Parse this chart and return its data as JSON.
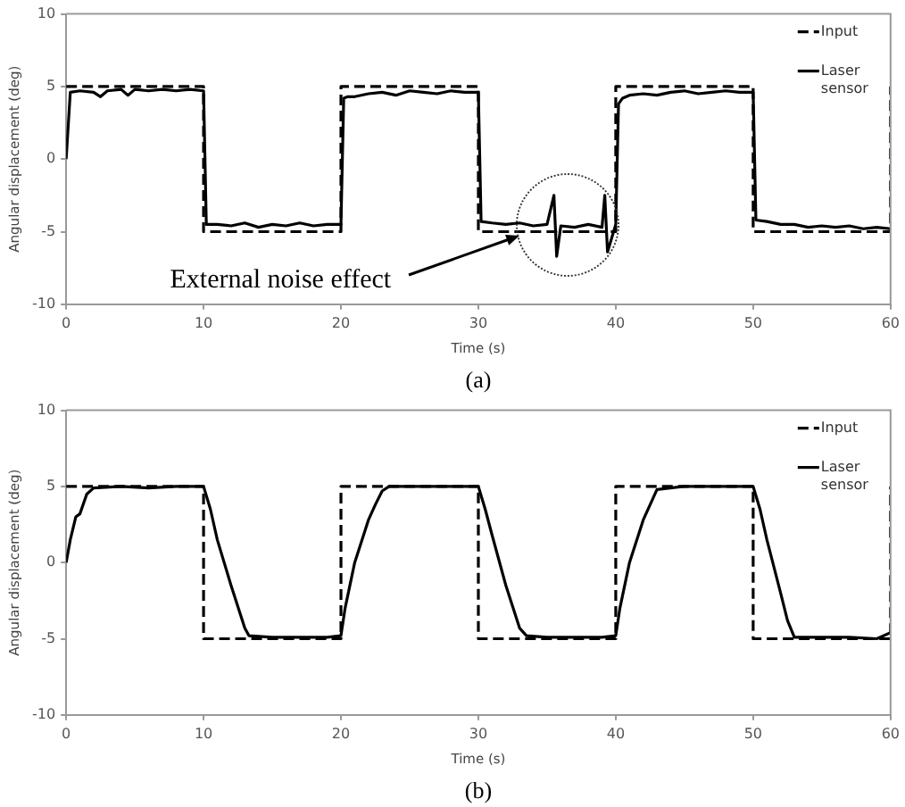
{
  "chart_data": [
    {
      "type": "line",
      "xlabel": "Time (s)",
      "ylabel": "Angular displacement (deg)",
      "xlim": [
        0,
        60
      ],
      "xticks": [
        0,
        10,
        20,
        30,
        40,
        50,
        60
      ],
      "ylim": [
        -10,
        10
      ],
      "yticks": [
        -10,
        -5,
        0,
        5,
        10
      ],
      "grid": false,
      "legend": "top right",
      "marker": "none",
      "annotations": [
        {
          "text": "External noise effect",
          "x": 33,
          "y": -5.3
        },
        "(a)"
      ],
      "series": [
        {
          "name": "Input",
          "color": "#000000",
          "line_style": "dashed",
          "x": [
            0,
            10,
            10,
            20,
            20,
            30,
            30,
            40,
            40,
            50,
            50,
            60,
            60
          ],
          "values": [
            5,
            5,
            -5,
            -5,
            5,
            5,
            -5,
            -5,
            5,
            5,
            -5,
            -5,
            5
          ]
        },
        {
          "name": "Laser sensor",
          "color": "#000000",
          "line_style": "solid",
          "x": [
            0,
            0.3,
            1,
            2,
            2.5,
            3,
            4,
            4.5,
            5,
            6,
            7,
            8,
            9,
            10,
            10.2,
            11,
            12,
            13,
            14,
            15,
            16,
            17,
            18,
            19,
            20,
            20.2,
            20.5,
            21,
            22,
            23,
            24,
            25,
            26,
            27,
            28,
            29,
            30,
            30.2,
            31,
            32,
            33,
            34,
            35,
            35.5,
            35.7,
            36,
            37,
            38,
            39,
            39.2,
            39.4,
            40,
            40.2,
            40.5,
            41,
            42,
            43,
            44,
            45,
            46,
            47,
            48,
            49,
            50,
            50.2,
            51,
            52,
            53,
            54,
            55,
            56,
            57,
            58,
            59,
            60
          ],
          "values": [
            0,
            4.6,
            4.7,
            4.6,
            4.3,
            4.7,
            4.8,
            4.4,
            4.8,
            4.7,
            4.8,
            4.7,
            4.8,
            4.7,
            -4.5,
            -4.5,
            -4.6,
            -4.4,
            -4.7,
            -4.5,
            -4.6,
            -4.4,
            -4.6,
            -4.5,
            -4.5,
            4.2,
            4.3,
            4.3,
            4.5,
            4.6,
            4.4,
            4.7,
            4.6,
            4.5,
            4.7,
            4.6,
            4.6,
            -4.3,
            -4.4,
            -4.5,
            -4.4,
            -4.6,
            -4.5,
            -2.5,
            -6.7,
            -4.6,
            -4.7,
            -4.5,
            -4.7,
            -2.5,
            -6.4,
            -4.5,
            3.8,
            4.2,
            4.4,
            4.5,
            4.4,
            4.6,
            4.7,
            4.5,
            4.6,
            4.7,
            4.6,
            4.6,
            -4.2,
            -4.3,
            -4.5,
            -4.5,
            -4.7,
            -4.6,
            -4.7,
            -4.6,
            -4.8,
            -4.7,
            -4.8
          ]
        }
      ]
    },
    {
      "type": "line",
      "xlabel": "Time (s)",
      "ylabel": "Angular displacement (deg)",
      "xlim": [
        0,
        60
      ],
      "xticks": [
        0,
        10,
        20,
        30,
        40,
        50,
        60
      ],
      "ylim": [
        -10,
        10
      ],
      "yticks": [
        -10,
        -5,
        0,
        5,
        10
      ],
      "grid": false,
      "legend": "top right",
      "marker": "none",
      "annotations": [
        "(b)"
      ],
      "series": [
        {
          "name": "Input",
          "color": "#000000",
          "line_style": "dashed",
          "x": [
            0,
            10,
            10,
            20,
            20,
            30,
            30,
            40,
            40,
            50,
            50,
            60,
            60
          ],
          "values": [
            5,
            5,
            -5,
            -5,
            5,
            5,
            -5,
            -5,
            5,
            5,
            -5,
            -5,
            5
          ]
        },
        {
          "name": "Laser sensor",
          "color": "#000000",
          "line_style": "solid",
          "x": [
            0,
            0.3,
            0.7,
            1,
            1.5,
            2,
            4,
            6,
            8,
            10,
            10.5,
            11,
            12,
            13,
            13.3,
            15,
            17,
            19,
            20,
            20.3,
            21,
            22,
            22.5,
            23,
            23.5,
            26,
            28,
            30,
            30.5,
            31,
            32,
            33,
            33.5,
            35,
            37,
            39,
            40,
            40.3,
            41,
            42,
            42.5,
            43,
            45,
            47,
            49,
            50,
            50.5,
            51,
            52,
            52.5,
            53,
            55,
            57,
            59,
            60
          ],
          "values": [
            0,
            1.5,
            3,
            3.2,
            4.5,
            4.9,
            5,
            4.9,
            5,
            5,
            3.5,
            1.5,
            -1.5,
            -4.3,
            -4.8,
            -4.9,
            -4.9,
            -4.9,
            -4.8,
            -3,
            0,
            2.8,
            3.8,
            4.7,
            5,
            5,
            5,
            5,
            3.5,
            1.8,
            -1.5,
            -4.3,
            -4.8,
            -4.9,
            -4.9,
            -4.9,
            -4.8,
            -3,
            0,
            2.8,
            3.8,
            4.8,
            5,
            5,
            5,
            5,
            3.5,
            1.5,
            -2,
            -3.8,
            -4.9,
            -4.9,
            -4.9,
            -5,
            -4.6
          ]
        }
      ]
    }
  ]
}
